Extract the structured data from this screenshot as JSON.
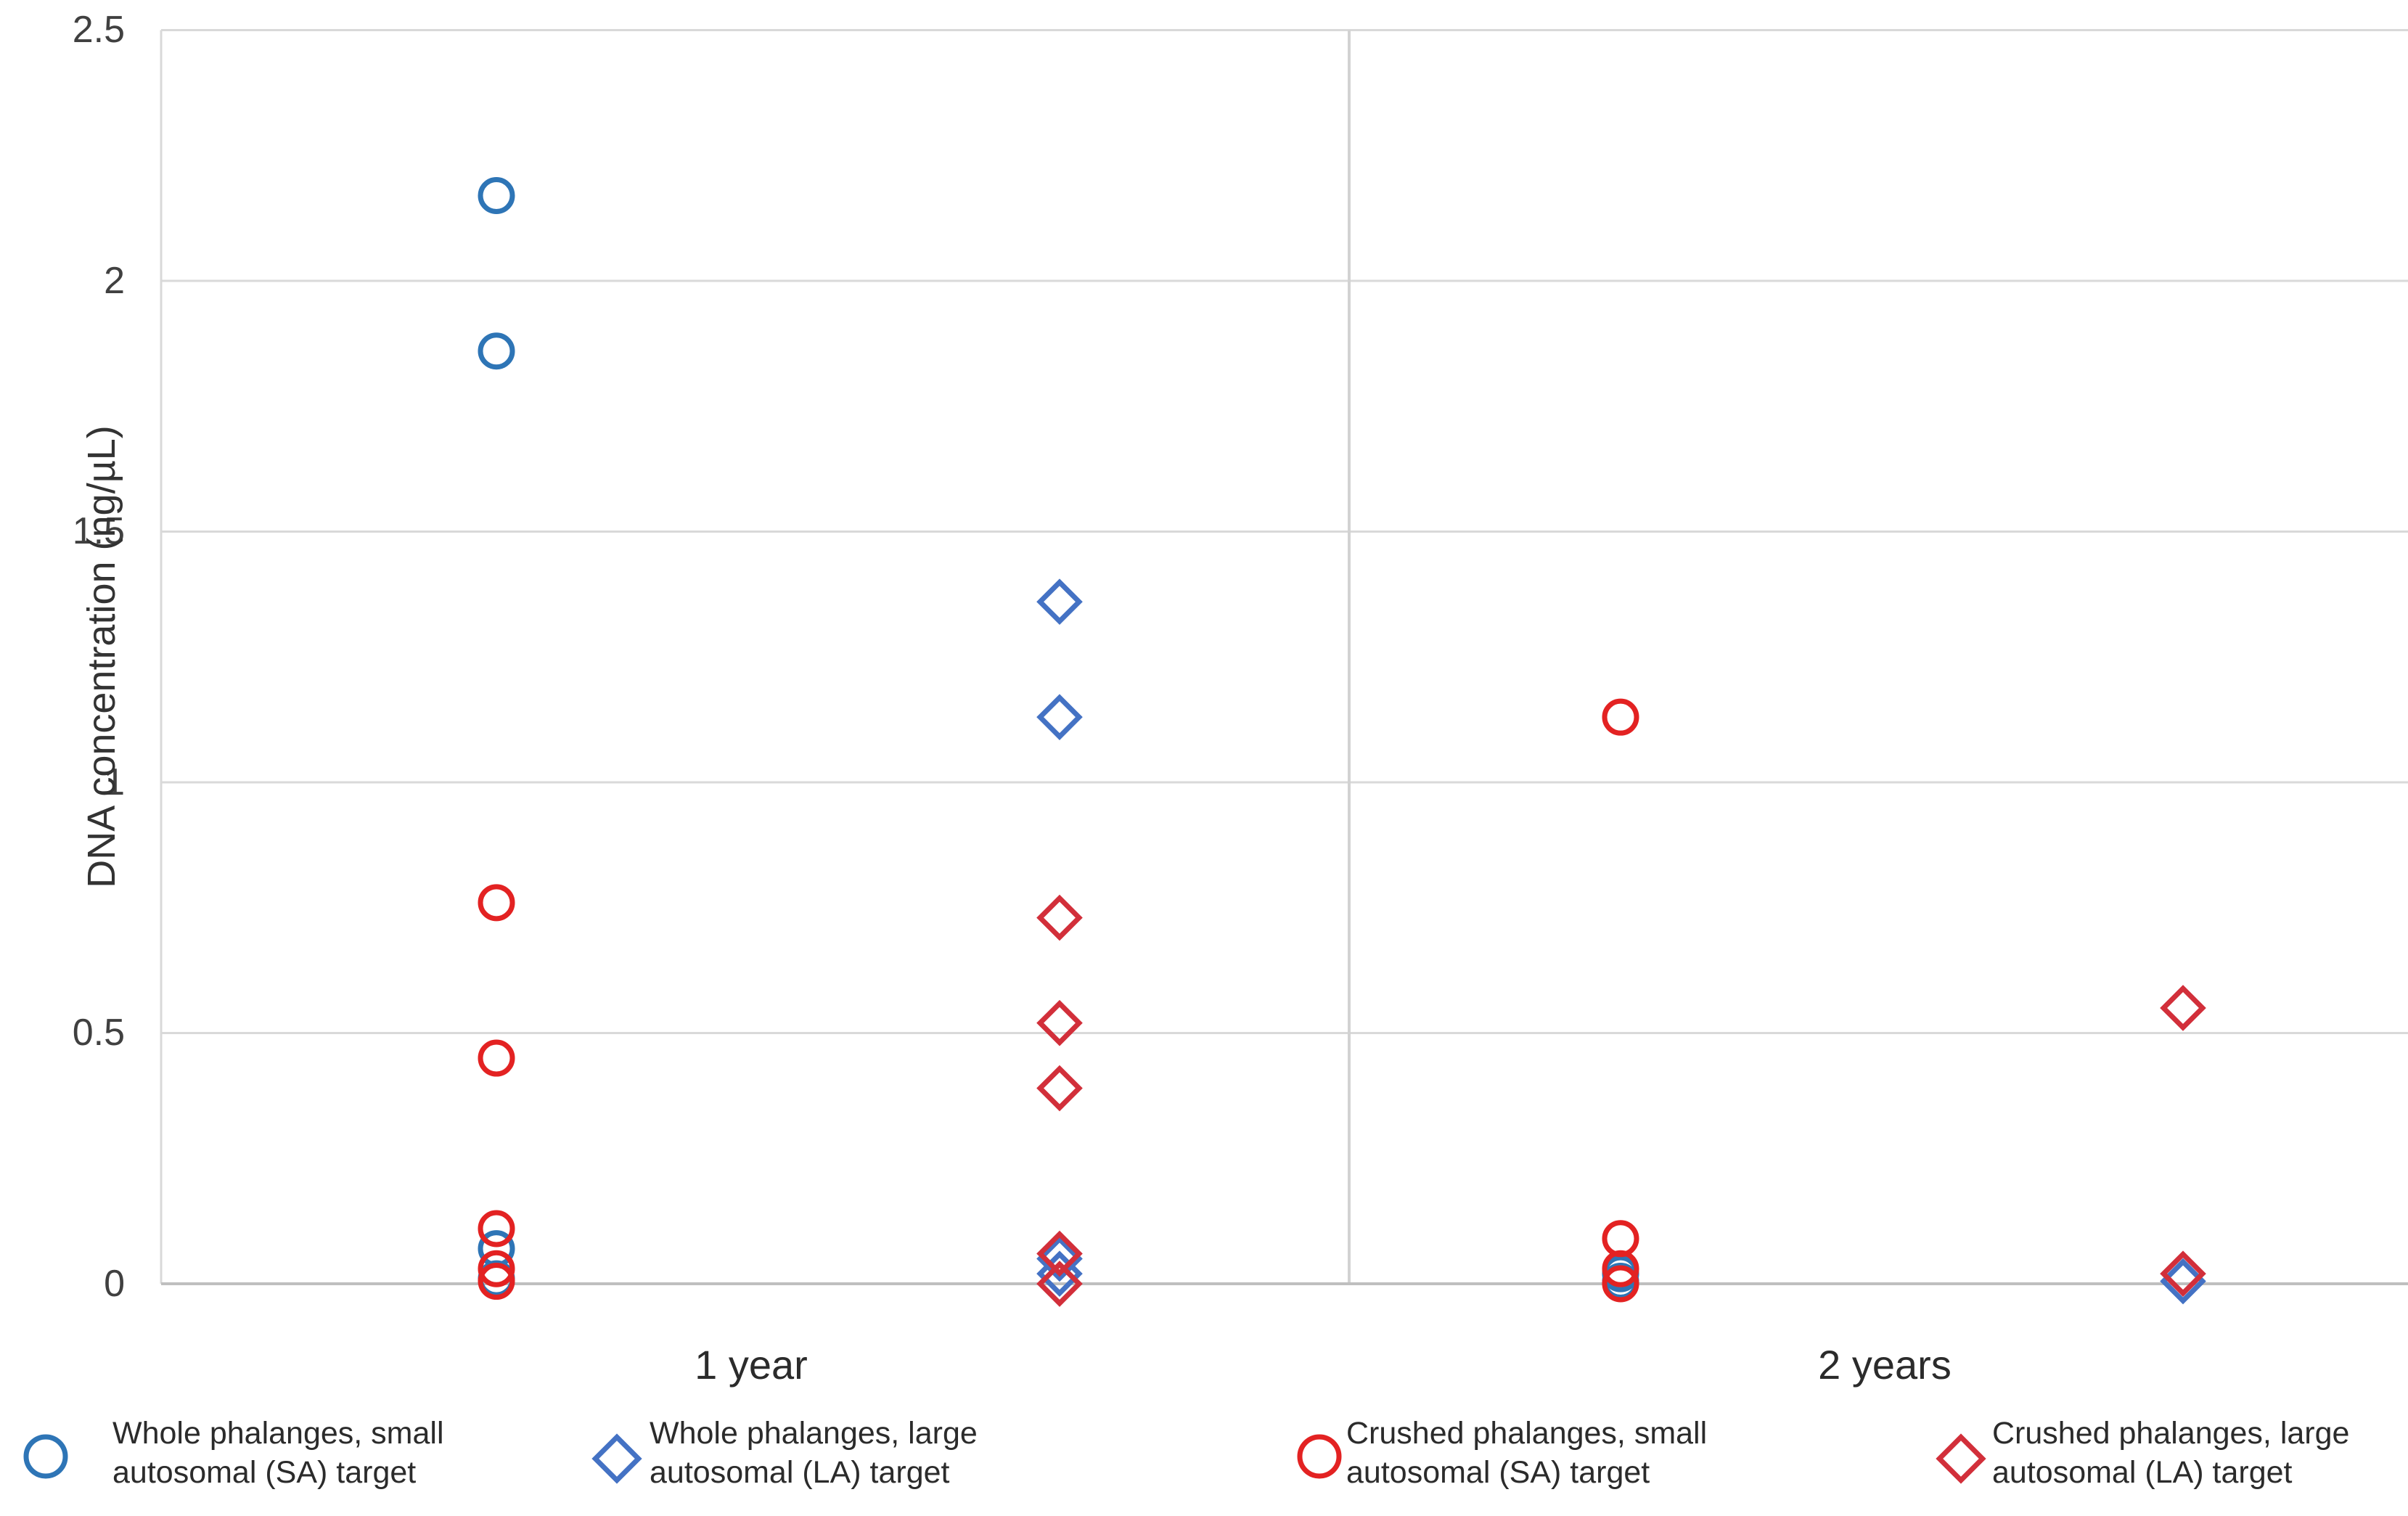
{
  "chart_data": {
    "type": "scatter",
    "title": "",
    "xlabel": "",
    "ylabel": "DNA concentration (ng/µL)",
    "ylim": [
      0,
      2.5
    ],
    "yticks": [
      "0",
      "0.5",
      "1",
      "1.5",
      "2",
      "2.5"
    ],
    "ytick_values": [
      0,
      0.5,
      1,
      1.5,
      2,
      2.5
    ],
    "categories": [
      "1 year",
      "2 years"
    ],
    "subcolumns": [
      "SA",
      "LA"
    ],
    "grid": "horizontal-only",
    "legend_position": "bottom",
    "axis_color": "#bfbfbf",
    "grid_color": "#d9d9d9",
    "divider_color": "#d2d2d2",
    "series": [
      {
        "name": "Whole phalanges, small autosomal (SA) target",
        "marker": "circle",
        "target": "SA",
        "color": "#2e75b6",
        "values": {
          "1 year": [
            2.17,
            1.86,
            0.07,
            0.01
          ],
          "2 years": [
            0.02,
            0.005
          ]
        }
      },
      {
        "name": "Whole phalanges, large autosomal (LA) target",
        "marker": "diamond",
        "target": "LA",
        "color": "#4472c4",
        "values": {
          "1 year": [
            1.36,
            1.13,
            0.05,
            0.02
          ],
          "2 years": [
            0.005
          ]
        }
      },
      {
        "name": "Crushed phalanges, small autosomal (SA) target",
        "marker": "circle",
        "target": "SA",
        "color": "#e32222",
        "values": {
          "1 year": [
            0.76,
            0.45,
            0.11,
            0.03,
            0.005
          ],
          "2 years": [
            1.13,
            0.09,
            0.03,
            0.0
          ]
        }
      },
      {
        "name": "Crushed phalanges, large autosomal (LA) target",
        "marker": "diamond",
        "target": "LA",
        "color": "#d22f3a",
        "values": {
          "1 year": [
            0.73,
            0.52,
            0.39,
            0.06,
            0.0
          ],
          "2 years": [
            0.55,
            0.02
          ]
        }
      }
    ]
  },
  "legend": {
    "items": [
      {
        "marker": "circle",
        "color": "#2e75b6",
        "line1": "Whole phalanges, small",
        "line2": "autosomal (SA) target"
      },
      {
        "marker": "diamond",
        "color": "#4472c4",
        "line1": "Whole phalanges, large",
        "line2": "autosomal (LA) target"
      },
      {
        "marker": "circle",
        "color": "#e32222",
        "line1": "Crushed phalanges, small",
        "line2": "autosomal (SA) target"
      },
      {
        "marker": "diamond",
        "color": "#d22f3a",
        "line1": "Crushed phalanges, large",
        "line2": "autosomal (LA) target"
      }
    ]
  }
}
